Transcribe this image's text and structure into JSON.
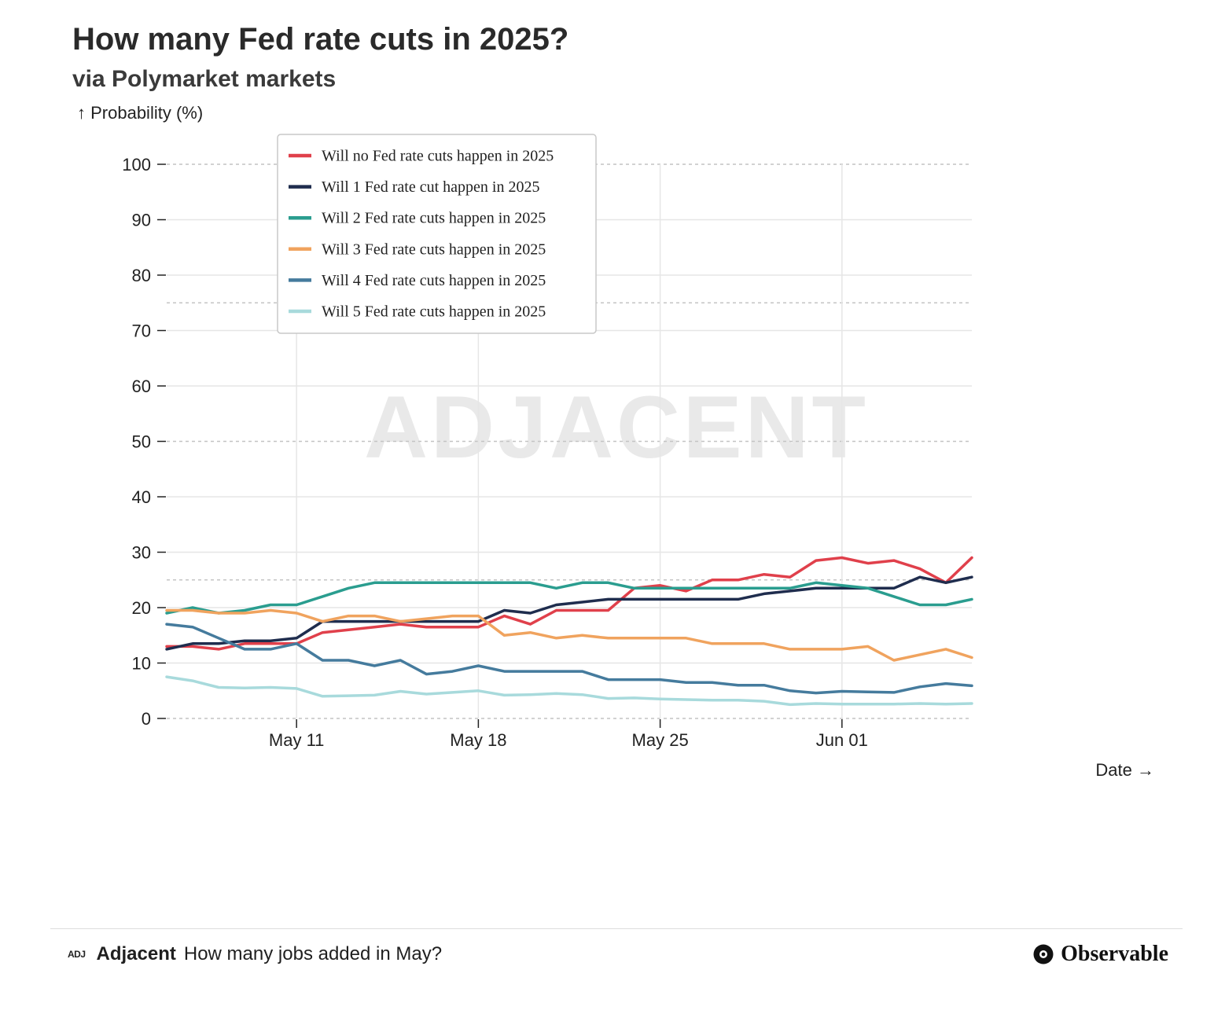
{
  "header": {
    "title": "How many Fed rate cuts in 2025?",
    "subtitle": "via Polymarket markets"
  },
  "watermark": "ADJACENT",
  "footer": {
    "logo_mark": "ADJ",
    "brand": "Adjacent",
    "link_text": "How many jobs added in May?",
    "platform": "Observable"
  },
  "chart_data": {
    "type": "line",
    "ylabel": "↑ Probability (%)",
    "xlabel": "Date →",
    "ylim": [
      0,
      100
    ],
    "yticks": [
      0,
      10,
      20,
      30,
      40,
      50,
      60,
      70,
      80,
      90,
      100
    ],
    "reference_lines": [
      0,
      25,
      50,
      75,
      100
    ],
    "x_ticks": [
      "May 11",
      "May 18",
      "May 25",
      "Jun 01"
    ],
    "x_tick_dates": [
      "2025-05-11",
      "2025-05-18",
      "2025-05-25",
      "2025-06-01"
    ],
    "x": [
      "2025-05-06",
      "2025-05-07",
      "2025-05-08",
      "2025-05-09",
      "2025-05-10",
      "2025-05-11",
      "2025-05-12",
      "2025-05-13",
      "2025-05-14",
      "2025-05-15",
      "2025-05-16",
      "2025-05-17",
      "2025-05-18",
      "2025-05-19",
      "2025-05-20",
      "2025-05-21",
      "2025-05-22",
      "2025-05-23",
      "2025-05-24",
      "2025-05-25",
      "2025-05-26",
      "2025-05-27",
      "2025-05-28",
      "2025-05-29",
      "2025-05-30",
      "2025-05-31",
      "2025-06-01",
      "2025-06-02",
      "2025-06-03",
      "2025-06-04",
      "2025-06-05",
      "2025-06-06"
    ],
    "grid": true,
    "legend_position": "top-left",
    "series": [
      {
        "name": "Will no Fed rate cuts happen in 2025",
        "color": "#e0404b",
        "values": [
          13,
          13,
          12.5,
          13.5,
          13.5,
          13.5,
          15.5,
          16,
          16.5,
          17,
          16.5,
          16.5,
          16.5,
          18.5,
          17,
          19.5,
          19.5,
          19.5,
          23.5,
          24,
          23,
          25,
          25,
          26,
          25.5,
          28.5,
          29,
          28,
          28.5,
          27,
          24.5,
          29
        ]
      },
      {
        "name": "Will 1 Fed rate cut happen in 2025",
        "color": "#1f2d4e",
        "values": [
          12.5,
          13.5,
          13.5,
          14,
          14,
          14.5,
          17.5,
          17.5,
          17.5,
          17.5,
          17.5,
          17.5,
          17.5,
          19.5,
          19,
          20.5,
          21,
          21.5,
          21.5,
          21.5,
          21.5,
          21.5,
          21.5,
          22.5,
          23,
          23.5,
          23.5,
          23.5,
          23.5,
          25.5,
          24.5,
          25.5
        ]
      },
      {
        "name": "Will 2 Fed rate cuts happen in 2025",
        "color": "#2a9d8f",
        "values": [
          19,
          20,
          19,
          19.5,
          20.5,
          20.5,
          22,
          23.5,
          24.5,
          24.5,
          24.5,
          24.5,
          24.5,
          24.5,
          24.5,
          23.5,
          24.5,
          24.5,
          23.5,
          23.5,
          23.5,
          23.5,
          23.5,
          23.5,
          23.5,
          24.5,
          24,
          23.5,
          22,
          20.5,
          20.5,
          21.5
        ]
      },
      {
        "name": "Will 3 Fed rate cuts happen in 2025",
        "color": "#f0a35e",
        "values": [
          19.5,
          19.5,
          19,
          19,
          19.5,
          19,
          17.5,
          18.5,
          18.5,
          17.5,
          18,
          18.5,
          18.5,
          15,
          15.5,
          14.5,
          15,
          14.5,
          14.5,
          14.5,
          14.5,
          13.5,
          13.5,
          13.5,
          12.5,
          12.5,
          12.5,
          13,
          10.5,
          11.5,
          12.5,
          11
        ]
      },
      {
        "name": "Will 4 Fed rate cuts happen in 2025",
        "color": "#457b9d",
        "values": [
          17,
          16.5,
          14.5,
          12.5,
          12.5,
          13.5,
          10.5,
          10.5,
          9.5,
          10.5,
          8,
          8.5,
          9.5,
          8.5,
          8.5,
          8.5,
          8.5,
          7,
          7,
          7,
          6.5,
          6.5,
          6,
          6,
          5,
          4.6,
          4.9,
          4.8,
          4.7,
          5.7,
          6.3,
          5.9
        ]
      },
      {
        "name": "Will 5 Fed rate cuts happen in 2025",
        "color": "#a8dadc",
        "values": [
          7.5,
          6.8,
          5.6,
          5.5,
          5.6,
          5.4,
          4,
          4.1,
          4.2,
          4.9,
          4.4,
          4.7,
          5,
          4.2,
          4.3,
          4.5,
          4.3,
          3.6,
          3.7,
          3.5,
          3.4,
          3.3,
          3.3,
          3.1,
          2.5,
          2.7,
          2.6,
          2.6,
          2.6,
          2.7,
          2.6,
          2.7
        ]
      }
    ]
  }
}
